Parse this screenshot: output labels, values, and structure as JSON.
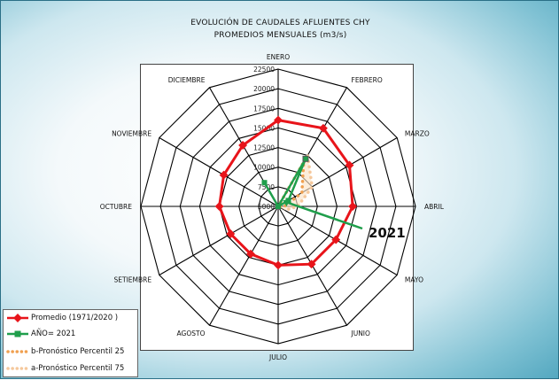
{
  "chart_data": {
    "type": "radar",
    "title": "EVOLUCIÓN DE CAUDALES AFLUENTES CHY",
    "subtitle": "PROMEDIOS MENSUALES (m3/s)",
    "categories": [
      "ENERO",
      "FEBRERO",
      "MARZO",
      "ABRIL",
      "MAYO",
      "JUNIO",
      "JULIO",
      "AGOSTO",
      "SETIEMBRE",
      "OCTUBRE",
      "NOVIEMBRE",
      "DICIEMBRE"
    ],
    "rlim": [
      5000,
      22500
    ],
    "ticks": [
      "5000",
      "7500",
      "10000",
      "12500",
      "15000",
      "17500",
      "20000",
      "22500"
    ],
    "tick_values": [
      5000,
      7500,
      10000,
      12500,
      15000,
      17500,
      20000,
      22500
    ],
    "series": [
      {
        "name": "Promedio (1971/2020 )",
        "color": "#e8141a",
        "style": "line-diamond",
        "values": [
          16000,
          16500,
          15500,
          14500,
          13500,
          13500,
          12500,
          12000,
          12000,
          12500,
          13000,
          14000
        ]
      },
      {
        "name": "AÑO= 2021",
        "color": "#1f9e4b",
        "style": "line-square",
        "values": [
          5000,
          12000,
          6500,
          5000,
          null,
          null,
          null,
          null,
          null,
          null,
          null,
          8500
        ]
      },
      {
        "name": "b-Pronóstico Percentil 25",
        "color": "#f0a050",
        "style": "dots",
        "values": [
          5000,
          11500,
          8500,
          5800,
          5000,
          null,
          null,
          null,
          null,
          null,
          null,
          null
        ]
      },
      {
        "name": "a-Pronóstico Percentil 75",
        "color": "#f5c89c",
        "style": "dots",
        "values": [
          5000,
          12500,
          10000,
          7500,
          6000,
          null,
          null,
          null,
          null,
          null,
          null,
          null
        ]
      }
    ],
    "annotation": {
      "text": "2021",
      "points_to_category": "FEBRERO",
      "points_to_value": 6000
    },
    "grid": true,
    "legend_position": "bottom-left"
  }
}
